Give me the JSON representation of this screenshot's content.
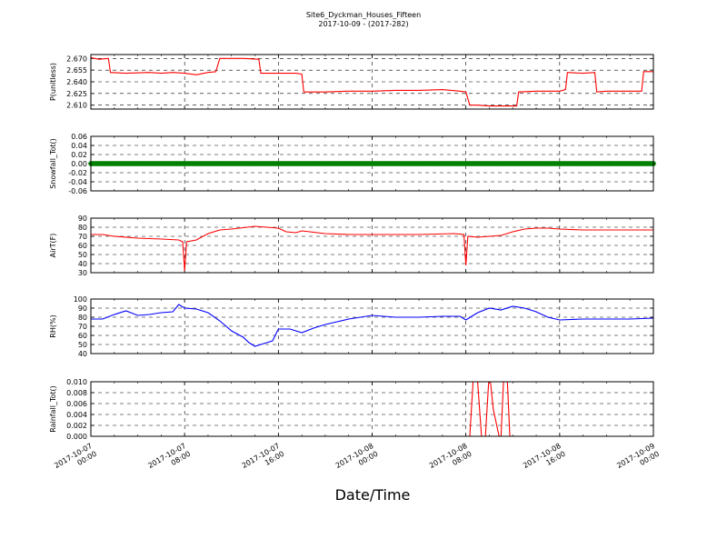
{
  "figure": {
    "title": "Site6_Dyckman_Houses_Fifteen",
    "subtitle": "2017-10-09 - (2017-282)",
    "xlabel": "Date/Time"
  },
  "chart_data": [
    {
      "type": "line",
      "ylabel": "P(unitless)",
      "ylim": [
        2.605,
        2.675
      ],
      "yticks": [
        "2.670",
        "2.655",
        "2.640",
        "2.625",
        "2.610"
      ],
      "grid": true,
      "color": "#ff0000",
      "x": [
        "2017-10-07 00:00",
        "2017-10-07 00:40",
        "2017-10-07 01:30",
        "2017-10-07 01:40",
        "2017-10-07 03:00",
        "2017-10-07 05:00",
        "2017-10-07 06:00",
        "2017-10-07 07:00",
        "2017-10-07 08:00",
        "2017-10-07 09:00",
        "2017-10-07 10:00",
        "2017-10-07 10:40",
        "2017-10-07 11:00",
        "2017-10-07 13:00",
        "2017-10-07 14:20",
        "2017-10-07 14:30",
        "2017-10-07 16:00",
        "2017-10-07 17:30",
        "2017-10-07 18:00",
        "2017-10-07 18:10",
        "2017-10-07 20:00",
        "2017-10-07 22:00",
        "2017-10-08 00:00",
        "2017-10-08 02:00",
        "2017-10-08 04:00",
        "2017-10-08 06:00",
        "2017-10-08 07:30",
        "2017-10-08 08:00",
        "2017-10-08 08:20",
        "2017-10-08 09:00",
        "2017-10-08 10:00",
        "2017-10-08 11:00",
        "2017-10-08 12:00",
        "2017-10-08 12:20",
        "2017-10-08 12:30",
        "2017-10-08 14:00",
        "2017-10-08 16:00",
        "2017-10-08 16:30",
        "2017-10-08 16:40",
        "2017-10-08 18:00",
        "2017-10-08 19:00",
        "2017-10-08 19:10",
        "2017-10-08 20:00",
        "2017-10-08 22:00",
        "2017-10-08 23:00",
        "2017-10-08 23:10",
        "2017-10-09 00:00"
      ],
      "y": [
        2.671,
        2.669,
        2.67,
        2.652,
        2.651,
        2.652,
        2.651,
        2.652,
        2.651,
        2.649,
        2.652,
        2.653,
        2.67,
        2.67,
        2.669,
        2.651,
        2.651,
        2.651,
        2.65,
        2.627,
        2.627,
        2.628,
        2.628,
        2.629,
        2.629,
        2.63,
        2.628,
        2.627,
        2.61,
        2.61,
        2.609,
        2.609,
        2.609,
        2.609,
        2.627,
        2.628,
        2.628,
        2.63,
        2.652,
        2.651,
        2.652,
        2.627,
        2.628,
        2.628,
        2.628,
        2.653,
        2.653
      ]
    },
    {
      "type": "scatter",
      "ylabel": "Snowfall_Tot()",
      "ylim": [
        -0.06,
        0.06
      ],
      "yticks": [
        "0.06",
        "0.04",
        "0.02",
        "0.00",
        "-0.02",
        "-0.04",
        "-0.06"
      ],
      "grid": true,
      "color": "#008000",
      "x_range": [
        "2017-10-07 00:00",
        "2017-10-09 00:00"
      ],
      "constant_value": 0.0
    },
    {
      "type": "line",
      "ylabel": "AirT(F)",
      "ylim": [
        30,
        90
      ],
      "yticks": [
        "90",
        "80",
        "70",
        "60",
        "50",
        "40",
        "30"
      ],
      "grid": true,
      "color": "#ff0000",
      "x": [
        "2017-10-07 00:00",
        "2017-10-07 01:00",
        "2017-10-07 02:00",
        "2017-10-07 04:00",
        "2017-10-07 06:00",
        "2017-10-07 07:30",
        "2017-10-07 07:50",
        "2017-10-07 08:00",
        "2017-10-07 08:10",
        "2017-10-07 09:00",
        "2017-10-07 10:00",
        "2017-10-07 11:00",
        "2017-10-07 12:00",
        "2017-10-07 14:00",
        "2017-10-07 15:00",
        "2017-10-07 16:00",
        "2017-10-07 16:40",
        "2017-10-07 17:30",
        "2017-10-07 18:00",
        "2017-10-07 20:00",
        "2017-10-07 22:00",
        "2017-10-08 00:00",
        "2017-10-08 04:00",
        "2017-10-08 07:00",
        "2017-10-08 07:50",
        "2017-10-08 08:00",
        "2017-10-08 08:10",
        "2017-10-08 09:00",
        "2017-10-08 10:00",
        "2017-10-08 11:00",
        "2017-10-08 12:00",
        "2017-10-08 13:00",
        "2017-10-08 14:00",
        "2017-10-08 15:00",
        "2017-10-08 16:00",
        "2017-10-08 18:00",
        "2017-10-08 20:00",
        "2017-10-08 22:00",
        "2017-10-09 00:00"
      ],
      "y": [
        72,
        72,
        70,
        68,
        67,
        66,
        64,
        32,
        64,
        66,
        73,
        77,
        78,
        81,
        80,
        79,
        75,
        74,
        76,
        73,
        72,
        72,
        72,
        73,
        72,
        38,
        70,
        69,
        70,
        71,
        75,
        78,
        79,
        79,
        78,
        77,
        77,
        77,
        77
      ]
    },
    {
      "type": "line",
      "ylabel": "RH(%)",
      "ylim": [
        40,
        100
      ],
      "yticks": [
        "100",
        "90",
        "80",
        "70",
        "60",
        "50",
        "40"
      ],
      "grid": true,
      "color": "#0000ff",
      "x": [
        "2017-10-07 00:00",
        "2017-10-07 01:00",
        "2017-10-07 02:00",
        "2017-10-07 03:00",
        "2017-10-07 04:00",
        "2017-10-07 05:00",
        "2017-10-07 06:00",
        "2017-10-07 07:00",
        "2017-10-07 07:30",
        "2017-10-07 08:00",
        "2017-10-07 09:00",
        "2017-10-07 10:00",
        "2017-10-07 11:00",
        "2017-10-07 12:00",
        "2017-10-07 13:00",
        "2017-10-07 13:30",
        "2017-10-07 14:00",
        "2017-10-07 15:00",
        "2017-10-07 15:30",
        "2017-10-07 16:00",
        "2017-10-07 17:00",
        "2017-10-07 18:00",
        "2017-10-07 19:00",
        "2017-10-07 20:00",
        "2017-10-07 22:00",
        "2017-10-08 00:00",
        "2017-10-08 02:00",
        "2017-10-08 04:00",
        "2017-10-08 06:00",
        "2017-10-08 07:30",
        "2017-10-08 08:00",
        "2017-10-08 09:00",
        "2017-10-08 10:00",
        "2017-10-08 11:00",
        "2017-10-08 12:00",
        "2017-10-08 13:00",
        "2017-10-08 14:00",
        "2017-10-08 15:00",
        "2017-10-08 16:00",
        "2017-10-08 18:00",
        "2017-10-08 20:00",
        "2017-10-08 22:00",
        "2017-10-09 00:00"
      ],
      "y": [
        78,
        78,
        83,
        87,
        82,
        83,
        85,
        86,
        94,
        90,
        89,
        85,
        76,
        65,
        58,
        52,
        48,
        52,
        54,
        67,
        67,
        63,
        68,
        72,
        78,
        82,
        80,
        80,
        81,
        81,
        77,
        85,
        90,
        88,
        92,
        90,
        86,
        80,
        77,
        78,
        78,
        78,
        79
      ]
    },
    {
      "type": "line",
      "ylabel": "Rainfall_Tot()",
      "ylim": [
        0.0,
        0.01
      ],
      "yticks": [
        "0.010",
        "0.008",
        "0.006",
        "0.004",
        "0.002",
        "0.000"
      ],
      "grid": true,
      "color": "#ff0000",
      "x": [
        "2017-10-07 00:00",
        "2017-10-08 08:00",
        "2017-10-08 08:20",
        "2017-10-08 08:40",
        "2017-10-08 09:00",
        "2017-10-08 09:20",
        "2017-10-08 09:40",
        "2017-10-08 10:00",
        "2017-10-08 10:20",
        "2017-10-08 10:50",
        "2017-10-08 11:00",
        "2017-10-08 11:15",
        "2017-10-08 11:30",
        "2017-10-08 11:45",
        "2017-10-09 00:00"
      ],
      "y": [
        0.0,
        0.0,
        0.0,
        0.012,
        0.01,
        0.0,
        0.0,
        0.012,
        0.005,
        0.0,
        0.0,
        0.012,
        0.012,
        0.0,
        0.0
      ]
    }
  ],
  "x_axis": {
    "range": [
      "2017-10-07 00:00",
      "2017-10-09 00:00"
    ],
    "ticks": [
      {
        "at": "2017-10-07 00:00",
        "line1": "2017-10-07",
        "line2": "00:00"
      },
      {
        "at": "2017-10-07 08:00",
        "line1": "2017-10-07",
        "line2": "08:00"
      },
      {
        "at": "2017-10-07 16:00",
        "line1": "2017-10-07",
        "line2": "16:00"
      },
      {
        "at": "2017-10-08 00:00",
        "line1": "2017-10-08",
        "line2": "00:00"
      },
      {
        "at": "2017-10-08 08:00",
        "line1": "2017-10-08",
        "line2": "08:00"
      },
      {
        "at": "2017-10-08 16:00",
        "line1": "2017-10-08",
        "line2": "16:00"
      },
      {
        "at": "2017-10-09 00:00",
        "line1": "2017-10-09",
        "line2": "00:00"
      }
    ]
  }
}
